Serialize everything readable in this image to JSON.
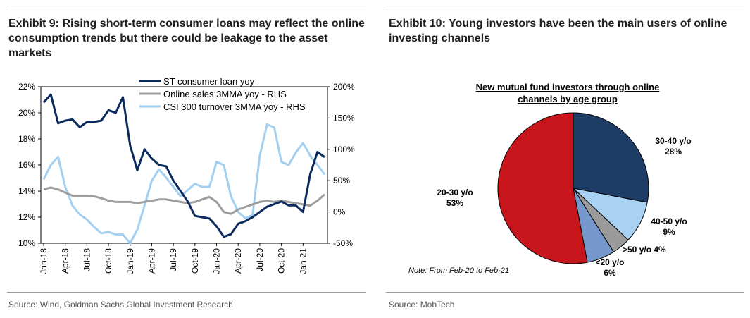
{
  "left": {
    "title": "Exhibit 9: Rising short-term consumer loans may reflect the online consumption trends but there could be leakage to the asset markets",
    "source": "Source: Wind, Goldman Sachs Global Investment Research"
  },
  "right": {
    "title": "Exhibit 10: Young investors have been the main users of online investing channels",
    "source": "Source: MobTech"
  },
  "chart_data": [
    {
      "type": "line",
      "title": "",
      "x_labels": [
        "Jan-18",
        "Apr-18",
        "Jul-18",
        "Oct-18",
        "Jan-19",
        "Apr-19",
        "Jul-19",
        "Oct-19",
        "Jan-20",
        "Apr-20",
        "Jul-20",
        "Oct-20",
        "Jan-21"
      ],
      "y_left": {
        "min": 10,
        "max": 22,
        "ticks": [
          "10%",
          "12%",
          "14%",
          "16%",
          "18%",
          "20%",
          "22%"
        ]
      },
      "y_right": {
        "min": -50,
        "max": 200,
        "ticks": [
          "-50%",
          "0%",
          "50%",
          "100%",
          "150%",
          "200%"
        ]
      },
      "legend_placement": "top-left",
      "series": [
        {
          "name": "ST consumer loan yoy",
          "axis": "left",
          "color": "#0b2b5e",
          "values": [
            20.8,
            21.4,
            19.2,
            19.4,
            19.5,
            18.9,
            19.3,
            19.3,
            19.4,
            20.2,
            20.0,
            21.2,
            17.5,
            15.6,
            17.2,
            16.5,
            16.0,
            15.9,
            14.8,
            14.0,
            13.2,
            12.1,
            12.0,
            11.9,
            11.3,
            10.5,
            10.7,
            11.5,
            11.7,
            12.0,
            12.4,
            12.8,
            13.0,
            13.2,
            12.9,
            12.9,
            12.4,
            15.3,
            17.0,
            16.6
          ]
        },
        {
          "name": "Online sales 3MMA yoy - RHS",
          "axis": "right",
          "color": "#9e9e9e",
          "values": [
            36,
            39,
            36,
            31,
            26,
            26,
            26,
            25,
            22,
            18,
            16,
            16,
            16,
            14,
            16,
            18,
            20,
            20,
            18,
            16,
            14,
            16,
            20,
            24,
            16,
            0,
            -3,
            4,
            8,
            12,
            16,
            18,
            16,
            18,
            16,
            14,
            12,
            10,
            18,
            28
          ]
        },
        {
          "name": "CSI 300 turnover 3MMA yoy - RHS",
          "axis": "right",
          "color": "#a3cff0",
          "values": [
            52,
            75,
            88,
            40,
            10,
            -4,
            -12,
            -24,
            -34,
            -32,
            -36,
            -36,
            -50,
            -28,
            10,
            50,
            68,
            55,
            40,
            25,
            35,
            45,
            40,
            40,
            80,
            75,
            25,
            0,
            -10,
            -5,
            90,
            140,
            135,
            80,
            75,
            95,
            110,
            90,
            75,
            60
          ]
        }
      ]
    },
    {
      "type": "pie",
      "title": "New mutual fund investors through online channels by age group",
      "note": "Note: From Feb-20 to Feb-21",
      "slices": [
        {
          "label": "30-40 y/o",
          "pct_label": "28%",
          "value": 28,
          "color": "#1e3d66"
        },
        {
          "label": "40-50 y/o",
          "pct_label": "9%",
          "value": 9,
          "color": "#a8d1f2"
        },
        {
          "label": ">50 y/o",
          "pct_label": "4%",
          "value": 4,
          "color": "#9b9b9b"
        },
        {
          "label": "<20 y/o",
          "pct_label": "6%",
          "value": 6,
          "color": "#7697cc"
        },
        {
          "label": "20-30 y/o",
          "pct_label": "53%",
          "value": 53,
          "color": "#c8141b"
        }
      ]
    }
  ]
}
